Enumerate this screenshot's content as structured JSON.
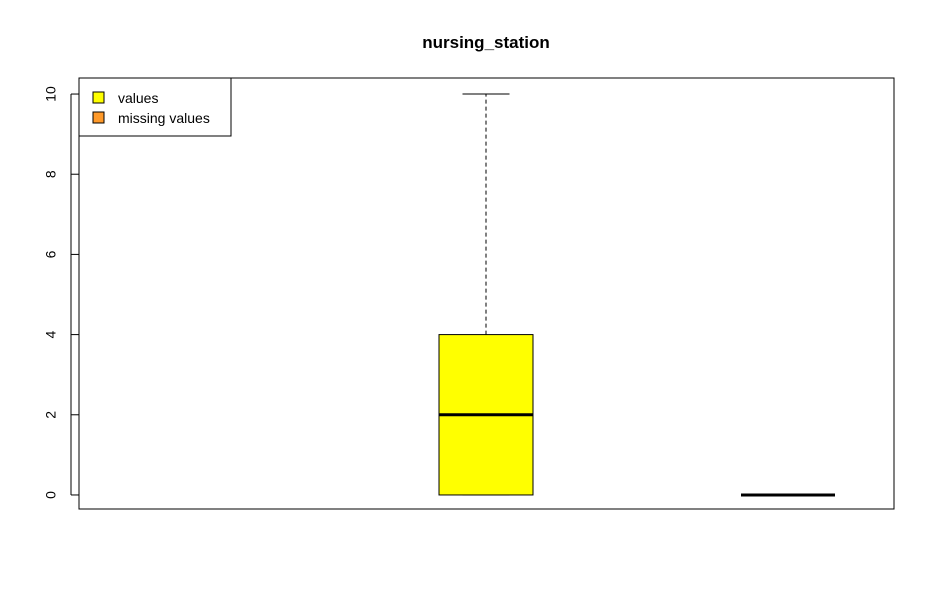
{
  "chart_data": {
    "type": "box",
    "title": "nursing_station",
    "xlabel": "",
    "ylabel": "",
    "ylim": [
      -0.35,
      10.4
    ],
    "yticks": [
      "0",
      "2",
      "4",
      "6",
      "8",
      "10"
    ],
    "boxes": [
      {
        "name": "values",
        "min": 0,
        "q1": 0,
        "median": 2,
        "q3": 4,
        "max": 10,
        "color": "#ffff00"
      },
      {
        "name": "missing values",
        "min": 0,
        "q1": 0,
        "median": 0,
        "q3": 0,
        "max": 0,
        "color": "#ff9a2a"
      }
    ],
    "legend": {
      "position": "top-left",
      "items": [
        {
          "label": "values",
          "color": "#ffff00"
        },
        {
          "label": "missing values",
          "color": "#ff9a2a"
        }
      ]
    },
    "grid": false
  }
}
